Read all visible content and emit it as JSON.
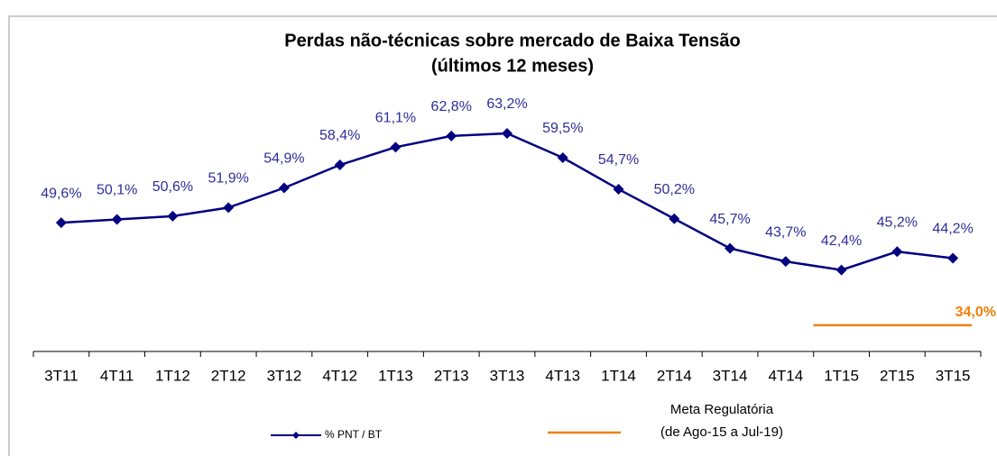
{
  "chart_data": {
    "type": "line",
    "title": "Perdas não-técnicas sobre mercado de Baixa Tensão",
    "subtitle": "(últimos 12 meses)",
    "categories": [
      "3T11",
      "4T11",
      "1T12",
      "2T12",
      "3T12",
      "4T12",
      "1T13",
      "2T13",
      "3T13",
      "4T13",
      "1T14",
      "2T14",
      "3T14",
      "4T14",
      "1T15",
      "2T15",
      "3T15"
    ],
    "series": [
      {
        "name": "% PNT / BT",
        "color": "#000080",
        "values": [
          49.6,
          50.1,
          50.6,
          51.9,
          54.9,
          58.4,
          61.1,
          62.8,
          63.2,
          59.5,
          54.7,
          50.2,
          45.7,
          43.7,
          42.4,
          45.2,
          44.2
        ],
        "value_labels": [
          "49,6%",
          "50,1%",
          "50,6%",
          "51,9%",
          "54,9%",
          "58,4%",
          "61,1%",
          "62,8%",
          "63,2%",
          "59,5%",
          "54,7%",
          "50,2%",
          "45,7%",
          "43,7%",
          "42,4%",
          "45,2%",
          "44,2%"
        ]
      }
    ],
    "reference_line": {
      "name_lines": [
        "Meta Regulatória",
        "(de Ago-15 a Jul-19)"
      ],
      "value": 34.0,
      "value_label": "34,0%",
      "color": "#F07F09"
    },
    "ylim": [
      30,
      75
    ]
  }
}
